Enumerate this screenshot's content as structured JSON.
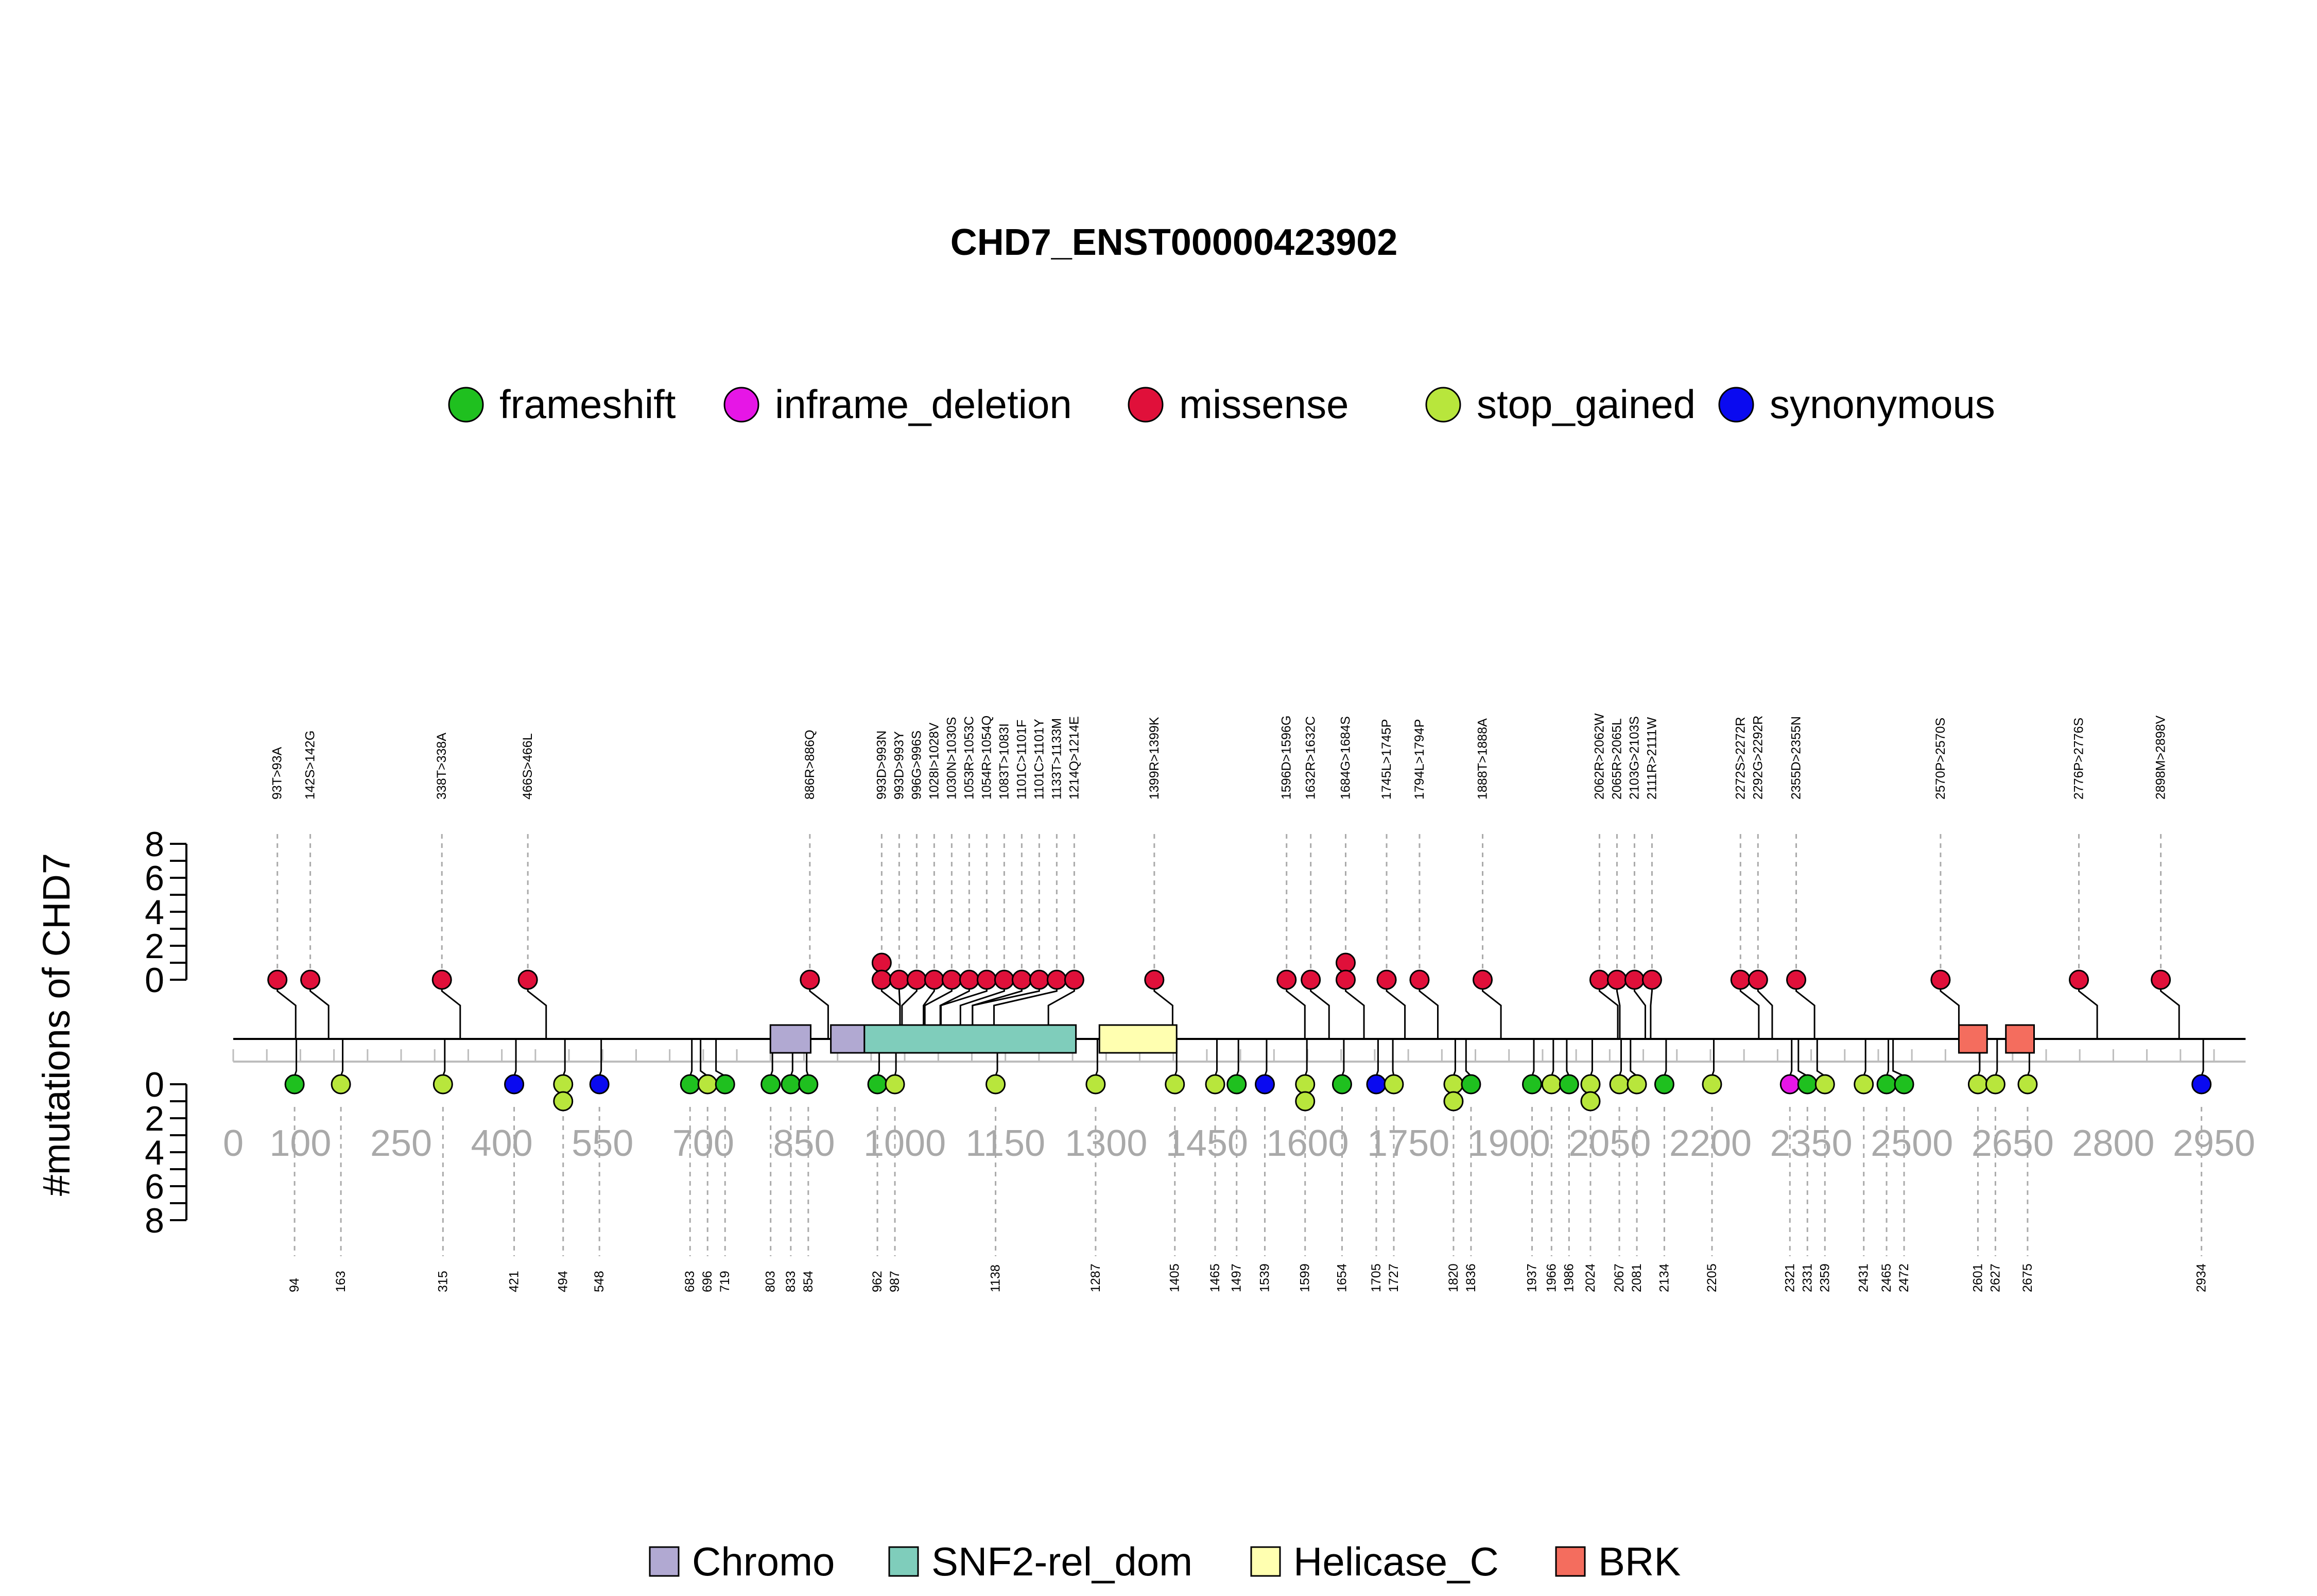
{
  "chart_data": {
    "type": "lollipop",
    "title": "CHD7_ENST00000423902",
    "ylabel": "#mutations of CHD7",
    "protein_length": 2997,
    "xlim": [
      0,
      2950
    ],
    "x_ticks": [
      0,
      100,
      250,
      400,
      550,
      700,
      850,
      1000,
      1150,
      1300,
      1450,
      1600,
      1750,
      1900,
      2050,
      2200,
      2350,
      2500,
      2650,
      2800,
      2950
    ],
    "x_tick_labels": [
      "0",
      "100",
      "250",
      "400",
      "550",
      "700",
      "850",
      "1000",
      "1150",
      "1300",
      "1450",
      "1600",
      "1750",
      "1900",
      "2050",
      "2200",
      "2350",
      "2500",
      "2650",
      "2800",
      "2950"
    ],
    "y_ticks_top": [
      "0",
      "2",
      "4",
      "6",
      "8"
    ],
    "y_ticks_bottom": [
      "0",
      "2",
      "4",
      "6",
      "8"
    ],
    "legend_types": [
      {
        "name": "frameshift",
        "color": "#1fc01f"
      },
      {
        "name": "inframe_deletion",
        "color": "#e616e6"
      },
      {
        "name": "missense",
        "color": "#e0103a"
      },
      {
        "name": "stop_gained",
        "color": "#b8e63c"
      },
      {
        "name": "synonymous",
        "color": "#0a0af0"
      }
    ],
    "domains": [
      {
        "name": "Chromo",
        "color": "#b1a9d2",
        "segments": [
          [
            800,
            860
          ],
          [
            890,
            940
          ]
        ]
      },
      {
        "name": "SNF2-rel_dom",
        "color": "#7fcdbb",
        "segments": [
          [
            940,
            1255
          ]
        ]
      },
      {
        "name": "Helicase_C",
        "color": "#ffffb0",
        "segments": [
          [
            1290,
            1405
          ]
        ]
      },
      {
        "name": "BRK",
        "color": "#f46d5e",
        "segments": [
          [
            2570,
            2612
          ],
          [
            2640,
            2682
          ]
        ]
      }
    ],
    "top_mutations": [
      {
        "label": "93T>93A",
        "pos": 93,
        "count": 1,
        "type": "missense"
      },
      {
        "label": "142S>142G",
        "pos": 142,
        "count": 1,
        "type": "missense"
      },
      {
        "label": "338T>338A",
        "pos": 338,
        "count": 1,
        "type": "missense"
      },
      {
        "label": "466S>466L",
        "pos": 466,
        "count": 1,
        "type": "missense"
      },
      {
        "label": "886R>886Q",
        "pos": 886,
        "count": 1,
        "type": "missense"
      },
      {
        "label": "993D>993N",
        "pos": 993,
        "count": 2,
        "type": "missense"
      },
      {
        "label": "993D>993Y",
        "pos": 993,
        "count": 1,
        "type": "missense"
      },
      {
        "label": "996G>996S",
        "pos": 996,
        "count": 1,
        "type": "missense"
      },
      {
        "label": "1028I>1028V",
        "pos": 1028,
        "count": 1,
        "type": "missense"
      },
      {
        "label": "1030N>1030S",
        "pos": 1030,
        "count": 1,
        "type": "missense"
      },
      {
        "label": "1053R>1053C",
        "pos": 1053,
        "count": 1,
        "type": "missense"
      },
      {
        "label": "1054R>1054Q",
        "pos": 1054,
        "count": 1,
        "type": "missense"
      },
      {
        "label": "1083T>1083I",
        "pos": 1083,
        "count": 1,
        "type": "missense"
      },
      {
        "label": "1101C>1101F",
        "pos": 1101,
        "count": 1,
        "type": "missense"
      },
      {
        "label": "1101C>1101Y",
        "pos": 1101,
        "count": 1,
        "type": "missense"
      },
      {
        "label": "1133T>1133M",
        "pos": 1133,
        "count": 1,
        "type": "missense"
      },
      {
        "label": "1214Q>1214E",
        "pos": 1214,
        "count": 1,
        "type": "missense"
      },
      {
        "label": "1399R>1399K",
        "pos": 1399,
        "count": 1,
        "type": "missense"
      },
      {
        "label": "1596D>1596G",
        "pos": 1596,
        "count": 1,
        "type": "missense"
      },
      {
        "label": "1632R>1632C",
        "pos": 1632,
        "count": 1,
        "type": "missense"
      },
      {
        "label": "1684G>1684S",
        "pos": 1684,
        "count": 2,
        "type": "missense"
      },
      {
        "label": "1745L>1745P",
        "pos": 1745,
        "count": 1,
        "type": "missense"
      },
      {
        "label": "1794L>1794P",
        "pos": 1794,
        "count": 1,
        "type": "missense"
      },
      {
        "label": "1888T>1888A",
        "pos": 1888,
        "count": 1,
        "type": "missense"
      },
      {
        "label": "2062R>2062W",
        "pos": 2062,
        "count": 1,
        "type": "missense"
      },
      {
        "label": "2065R>2065L",
        "pos": 2065,
        "count": 1,
        "type": "missense"
      },
      {
        "label": "2103G>2103S",
        "pos": 2103,
        "count": 1,
        "type": "missense"
      },
      {
        "label": "2111R>2111W",
        "pos": 2111,
        "count": 1,
        "type": "missense"
      },
      {
        "label": "2272S>2272R",
        "pos": 2272,
        "count": 1,
        "type": "missense"
      },
      {
        "label": "2292G>2292R",
        "pos": 2292,
        "count": 1,
        "type": "missense"
      },
      {
        "label": "2355D>2355N",
        "pos": 2355,
        "count": 1,
        "type": "missense"
      },
      {
        "label": "2570P>2570S",
        "pos": 2570,
        "count": 1,
        "type": "missense"
      },
      {
        "label": "2776P>2776S",
        "pos": 2776,
        "count": 1,
        "type": "missense"
      },
      {
        "label": "2898M>2898V",
        "pos": 2898,
        "count": 1,
        "type": "missense"
      }
    ],
    "bottom_mutations": [
      {
        "label": "94",
        "pos": 94,
        "count": 1,
        "type": "frameshift"
      },
      {
        "label": "163",
        "pos": 163,
        "count": 1,
        "type": "stop_gained"
      },
      {
        "label": "315",
        "pos": 315,
        "count": 1,
        "type": "stop_gained"
      },
      {
        "label": "421",
        "pos": 421,
        "count": 1,
        "type": "synonymous"
      },
      {
        "label": "494",
        "pos": 494,
        "count": 2,
        "type": "stop_gained"
      },
      {
        "label": "548",
        "pos": 548,
        "count": 1,
        "type": "synonymous"
      },
      {
        "label": "683",
        "pos": 683,
        "count": 1,
        "type": "frameshift"
      },
      {
        "label": "696",
        "pos": 696,
        "count": 1,
        "type": "stop_gained"
      },
      {
        "label": "719",
        "pos": 719,
        "count": 1,
        "type": "frameshift"
      },
      {
        "label": "803",
        "pos": 803,
        "count": 1,
        "type": "frameshift"
      },
      {
        "label": "833",
        "pos": 833,
        "count": 1,
        "type": "frameshift"
      },
      {
        "label": "854",
        "pos": 854,
        "count": 1,
        "type": "frameshift"
      },
      {
        "label": "962",
        "pos": 962,
        "count": 1,
        "type": "frameshift"
      },
      {
        "label": "987",
        "pos": 987,
        "count": 1,
        "type": "stop_gained"
      },
      {
        "label": "1138",
        "pos": 1138,
        "count": 1,
        "type": "stop_gained"
      },
      {
        "label": "1287",
        "pos": 1287,
        "count": 1,
        "type": "stop_gained"
      },
      {
        "label": "1405",
        "pos": 1405,
        "count": 1,
        "type": "stop_gained"
      },
      {
        "label": "1465",
        "pos": 1465,
        "count": 1,
        "type": "stop_gained"
      },
      {
        "label": "1497",
        "pos": 1497,
        "count": 1,
        "type": "frameshift"
      },
      {
        "label": "1539",
        "pos": 1539,
        "count": 1,
        "type": "synonymous"
      },
      {
        "label": "1599",
        "pos": 1599,
        "count": 2,
        "type": "stop_gained"
      },
      {
        "label": "1654",
        "pos": 1654,
        "count": 1,
        "type": "frameshift"
      },
      {
        "label": "1705",
        "pos": 1705,
        "count": 1,
        "type": "synonymous"
      },
      {
        "label": "1727",
        "pos": 1727,
        "count": 1,
        "type": "stop_gained"
      },
      {
        "label": "1820",
        "pos": 1820,
        "count": 2,
        "type": "stop_gained"
      },
      {
        "label": "1836",
        "pos": 1836,
        "count": 1,
        "type": "frameshift"
      },
      {
        "label": "1937",
        "pos": 1937,
        "count": 1,
        "type": "frameshift"
      },
      {
        "label": "1966",
        "pos": 1966,
        "count": 1,
        "type": "stop_gained"
      },
      {
        "label": "1986",
        "pos": 1986,
        "count": 1,
        "type": "frameshift"
      },
      {
        "label": "2024",
        "pos": 2024,
        "count": 2,
        "type": "stop_gained"
      },
      {
        "label": "2067",
        "pos": 2067,
        "count": 1,
        "type": "stop_gained"
      },
      {
        "label": "2081",
        "pos": 2081,
        "count": 1,
        "type": "stop_gained"
      },
      {
        "label": "2134",
        "pos": 2134,
        "count": 1,
        "type": "frameshift"
      },
      {
        "label": "2205",
        "pos": 2205,
        "count": 1,
        "type": "stop_gained"
      },
      {
        "label": "2321",
        "pos": 2321,
        "count": 1,
        "type": "inframe_deletion"
      },
      {
        "label": "2331",
        "pos": 2331,
        "count": 1,
        "type": "frameshift"
      },
      {
        "label": "2359",
        "pos": 2359,
        "count": 1,
        "type": "stop_gained"
      },
      {
        "label": "2431",
        "pos": 2431,
        "count": 1,
        "type": "stop_gained"
      },
      {
        "label": "2465",
        "pos": 2465,
        "count": 1,
        "type": "frameshift"
      },
      {
        "label": "2472",
        "pos": 2472,
        "count": 1,
        "type": "frameshift"
      },
      {
        "label": "2601",
        "pos": 2601,
        "count": 1,
        "type": "stop_gained"
      },
      {
        "label": "2627",
        "pos": 2627,
        "count": 1,
        "type": "stop_gained"
      },
      {
        "label": "2675",
        "pos": 2675,
        "count": 1,
        "type": "stop_gained"
      },
      {
        "label": "2934",
        "pos": 2934,
        "count": 1,
        "type": "synonymous"
      }
    ]
  }
}
